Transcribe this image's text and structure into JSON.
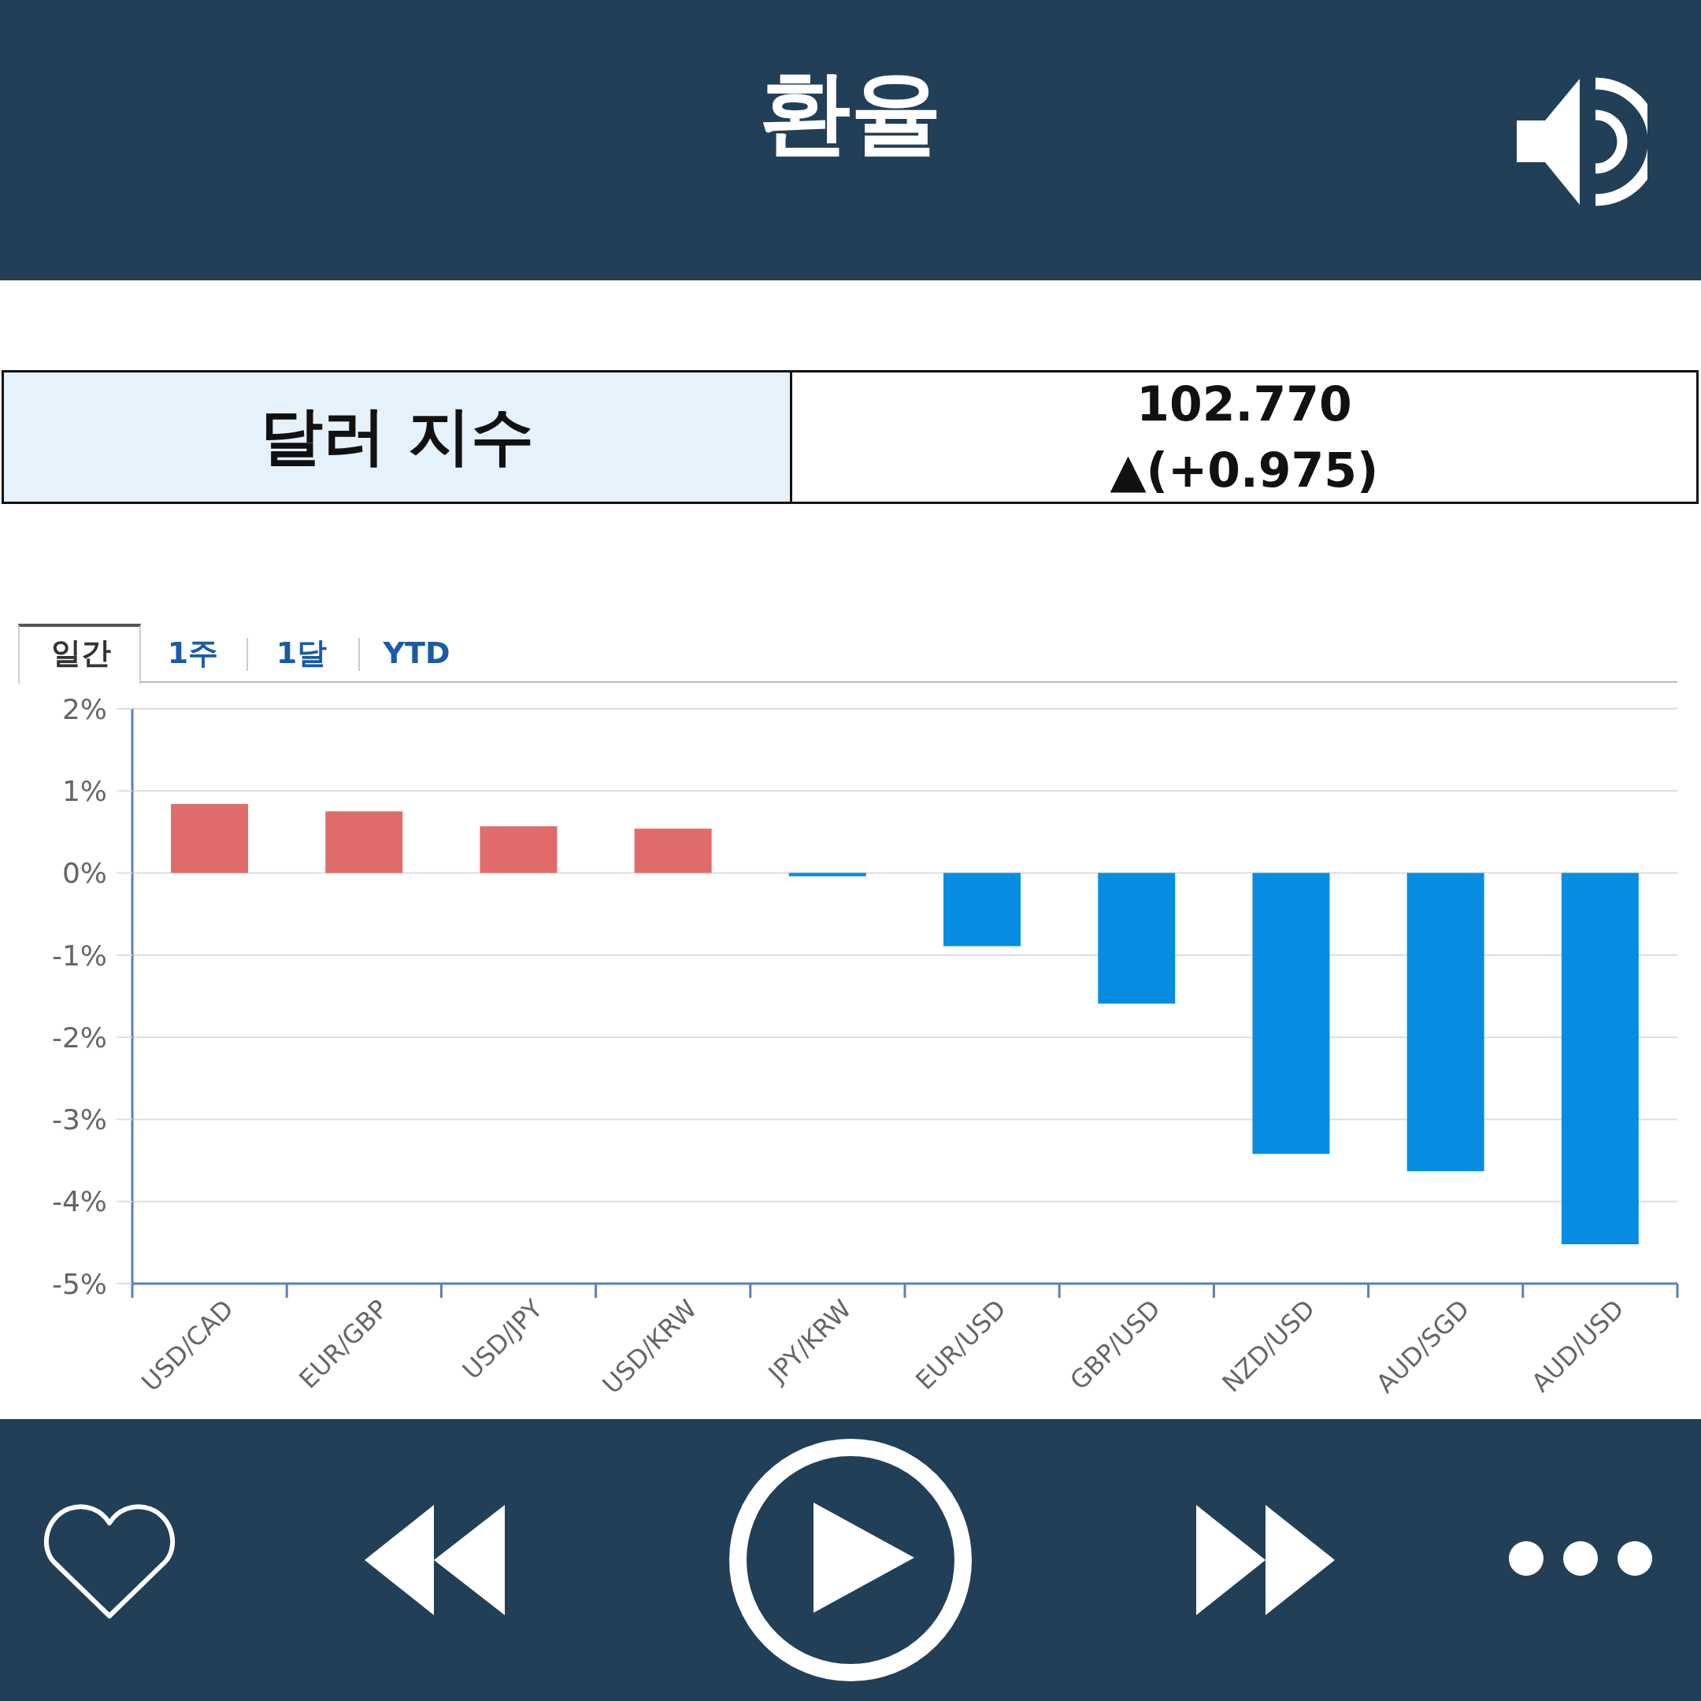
{
  "chart_data": {
    "type": "bar",
    "title": "환율",
    "annotations": [
      "달러 지수",
      "102.770",
      "▲(+0.975)",
      "일간",
      "1주",
      "1달",
      "YTD"
    ],
    "categories": [
      "USD/CAD",
      "EUR/GBP",
      "USD/JPY",
      "USD/KRW",
      "JPY/KRW",
      "EUR/USD",
      "GBP/USD",
      "NZD/USD",
      "AUD/SGD",
      "AUD/USD"
    ],
    "values": [
      0.84,
      0.75,
      0.57,
      0.54,
      -0.04,
      -0.89,
      -1.59,
      -3.42,
      -3.63,
      -4.52
    ],
    "colors": [
      "#e06b6b",
      "#e06b6b",
      "#e06b6b",
      "#e06b6b",
      "#068de2",
      "#068de2",
      "#068de2",
      "#068de2",
      "#068de2",
      "#068de2"
    ],
    "ylim": [
      -5,
      2
    ],
    "yticks": [
      {
        "value": 2,
        "label": "2%"
      },
      {
        "value": 1,
        "label": "1%"
      },
      {
        "value": 0,
        "label": "0%"
      },
      {
        "value": -1,
        "label": "-1%"
      },
      {
        "value": -2,
        "label": "-2%"
      },
      {
        "value": -3,
        "label": "-3%"
      },
      {
        "value": -4,
        "label": "-4%"
      },
      {
        "value": -5,
        "label": "-5%"
      }
    ],
    "grid": "y"
  }
}
